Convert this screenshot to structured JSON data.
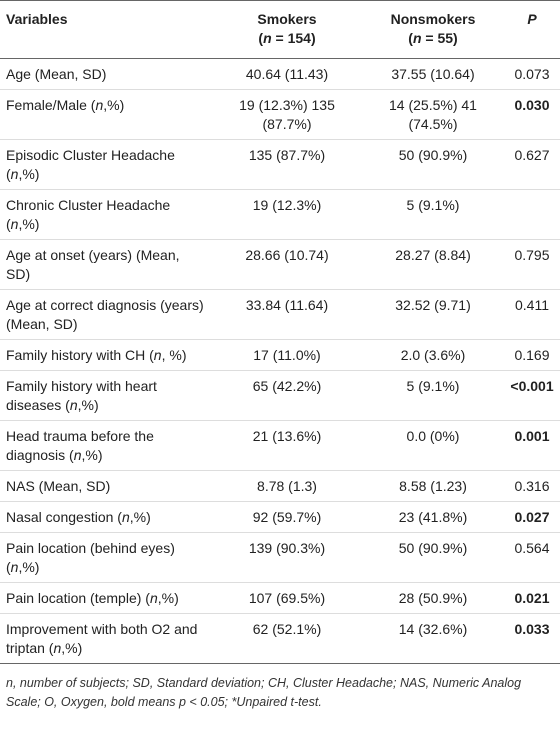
{
  "table": {
    "header": {
      "variable": "Variables",
      "smokers": [
        "Smokers",
        "(n = 154)"
      ],
      "nonsmokers": [
        "Nonsmokers",
        "(n = 55)"
      ],
      "p": "P"
    },
    "rows": [
      {
        "variable": "Age (Mean, SD)",
        "smokers": "40.64 (11.43)",
        "nonsmokers": "37.55 (10.64)",
        "p": "0.073"
      },
      {
        "variable": "Female/Male (n,%)",
        "smokers": "19 (12.3%) 135 (87.7%)",
        "nonsmokers": "14 (25.5%) 41 (74.5%)",
        "p": "0.030",
        "bold": true
      },
      {
        "variable": "Episodic Cluster Headache (n,%)",
        "smokers": "135 (87.7%)",
        "nonsmokers": "50 (90.9%)",
        "p": "0.627"
      },
      {
        "variable": "Chronic Cluster Headache (n,%)",
        "smokers": "19 (12.3%)",
        "nonsmokers": "5 (9.1%)",
        "p": ""
      },
      {
        "variable": "Age at onset (years) (Mean, SD)",
        "smokers": "28.66 (10.74)",
        "nonsmokers": "28.27 (8.84)",
        "p": "0.795"
      },
      {
        "variable": "Age at correct diagnosis (years) (Mean, SD)",
        "smokers": "33.84 (11.64)",
        "nonsmokers": "32.52 (9.71)",
        "p": "0.411"
      },
      {
        "variable": "Family history with CH (n, %)",
        "smokers": "17 (11.0%)",
        "nonsmokers": "2.0 (3.6%)",
        "p": "0.169"
      },
      {
        "variable": "Family history with heart diseases (n,%)",
        "smokers": "65 (42.2%)",
        "nonsmokers": "5 (9.1%)",
        "p": "<0.001",
        "bold": true
      },
      {
        "variable": "Head trauma before the diagnosis (n,%)",
        "smokers": "21 (13.6%)",
        "nonsmokers": "0.0 (0%)",
        "p": "0.001",
        "bold": true
      },
      {
        "variable": "NAS (Mean, SD)",
        "smokers": "8.78 (1.3)",
        "nonsmokers": "8.58 (1.23)",
        "p": "0.316"
      },
      {
        "variable": "Nasal congestion (n,%)",
        "smokers": "92 (59.7%)",
        "nonsmokers": "23 (41.8%)",
        "p": "0.027",
        "bold": true
      },
      {
        "variable": "Pain location (behind eyes) (n,%)",
        "smokers": "139 (90.3%)",
        "nonsmokers": "50 (90.9%)",
        "p": "0.564"
      },
      {
        "variable": "Pain location (temple) (n,%)",
        "smokers": "107 (69.5%)",
        "nonsmokers": "28 (50.9%)",
        "p": "0.021",
        "bold": true
      },
      {
        "variable": "Improvement with both O2 and triptan (n,%)",
        "smokers": "62 (52.1%)",
        "nonsmokers": "14 (32.6%)",
        "p": "0.033",
        "bold": true
      }
    ],
    "footnote": "n, number of subjects; SD, Standard deviation; CH, Cluster Headache; NAS, Numeric Analog Scale; O, Oxygen, bold means p < 0.05; *Unpaired t-test."
  }
}
